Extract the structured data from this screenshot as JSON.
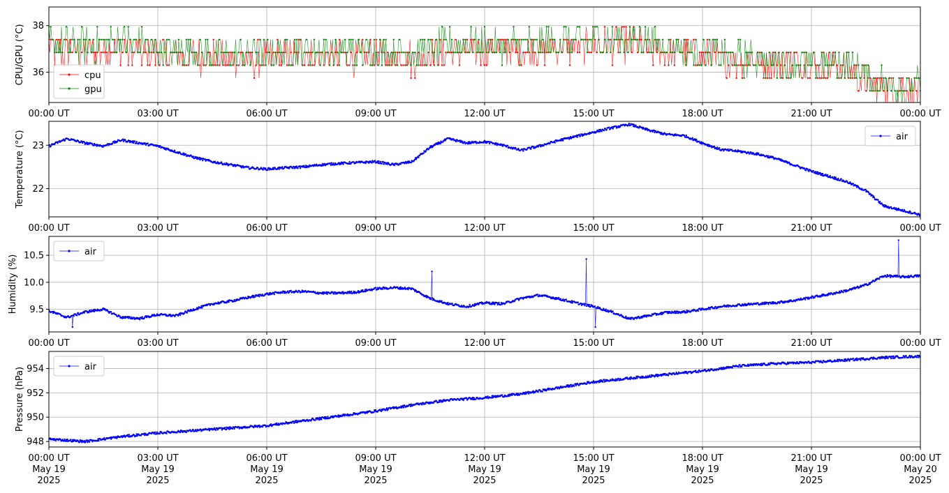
{
  "chart_data": [
    {
      "type": "line",
      "ylabel": "CPU/GPU (°C)",
      "ylim": [
        34.7,
        38.8
      ],
      "yticks": [
        36,
        38
      ],
      "legend_position": "lower left",
      "grid": true,
      "x_tick_labels": [
        "00:00 UT",
        "03:00 UT",
        "06:00 UT",
        "09:00 UT",
        "12:00 UT",
        "15:00 UT",
        "18:00 UT",
        "21:00 UT",
        "00:00 UT"
      ],
      "series": [
        {
          "name": "cpu",
          "color": "#ff0000",
          "x_hours": [
            0,
            1,
            2,
            3,
            4,
            5,
            6,
            7,
            8,
            9,
            10,
            11,
            12,
            13,
            14,
            15,
            16,
            17,
            18,
            19,
            20,
            21,
            22,
            22.5,
            23,
            24
          ],
          "values": [
            37.0,
            36.8,
            37.0,
            36.8,
            36.7,
            36.5,
            36.6,
            36.8,
            36.6,
            36.7,
            36.6,
            36.8,
            37.0,
            37.0,
            37.0,
            37.2,
            37.2,
            36.9,
            36.7,
            36.5,
            36.5,
            36.3,
            36.1,
            35.6,
            35.4,
            35.2
          ]
        },
        {
          "name": "gpu",
          "color": "#008000",
          "x_hours": [
            0,
            1,
            2,
            3,
            4,
            5,
            6,
            7,
            8,
            9,
            10,
            11,
            12,
            13,
            14,
            15,
            16,
            17,
            18,
            19,
            20,
            21,
            22,
            22.5,
            23,
            24
          ],
          "values": [
            37.3,
            37.1,
            37.3,
            37.0,
            36.9,
            36.7,
            36.8,
            37.0,
            36.9,
            36.9,
            36.9,
            37.1,
            37.2,
            37.2,
            37.3,
            37.4,
            37.4,
            37.2,
            36.9,
            36.6,
            36.5,
            36.4,
            36.3,
            35.9,
            35.5,
            35.4
          ]
        }
      ]
    },
    {
      "type": "line",
      "ylabel": "Temperature (°C)",
      "ylim": [
        21.35,
        23.55
      ],
      "yticks": [
        22,
        23
      ],
      "legend_position": "upper right",
      "grid": true,
      "x_tick_labels": [
        "00:00 UT",
        "03:00 UT",
        "06:00 UT",
        "09:00 UT",
        "12:00 UT",
        "15:00 UT",
        "18:00 UT",
        "21:00 UT",
        "00:00 UT"
      ],
      "series": [
        {
          "name": "air",
          "color": "#0000ff",
          "x_hours": [
            0,
            0.5,
            1,
            1.5,
            2,
            2.5,
            3,
            3.5,
            4,
            4.5,
            5,
            5.5,
            6,
            6.5,
            7,
            7.5,
            8,
            8.5,
            9,
            9.5,
            10,
            10.5,
            11,
            11.5,
            12,
            12.5,
            13,
            13.5,
            14,
            14.5,
            15,
            15.5,
            16,
            16.5,
            17,
            17.5,
            18,
            18.5,
            19,
            19.5,
            20,
            20.5,
            21,
            21.5,
            22,
            22.5,
            23,
            23.5,
            24
          ],
          "values": [
            22.98,
            23.15,
            23.05,
            22.98,
            23.12,
            23.05,
            22.98,
            22.85,
            22.72,
            22.62,
            22.55,
            22.48,
            22.45,
            22.48,
            22.5,
            22.55,
            22.58,
            22.6,
            22.62,
            22.55,
            22.62,
            22.95,
            23.15,
            23.05,
            23.08,
            23.0,
            22.88,
            22.98,
            23.1,
            23.2,
            23.3,
            23.4,
            23.48,
            23.35,
            23.25,
            23.22,
            23.05,
            22.9,
            22.86,
            22.8,
            22.7,
            22.55,
            22.4,
            22.28,
            22.15,
            21.95,
            21.6,
            21.5,
            21.4
          ]
        }
      ]
    },
    {
      "type": "line",
      "ylabel": "Humidity (%)",
      "ylim": [
        9.08,
        10.85
      ],
      "yticks": [
        9.5,
        10.0,
        10.5
      ],
      "legend_position": "upper left",
      "grid": true,
      "x_tick_labels": [
        "00:00 UT",
        "03:00 UT",
        "06:00 UT",
        "09:00 UT",
        "12:00 UT",
        "15:00 UT",
        "18:00 UT",
        "21:00 UT",
        "00:00 UT"
      ],
      "series": [
        {
          "name": "air",
          "color": "#0000ff",
          "x_hours": [
            0,
            0.5,
            1,
            1.5,
            2,
            2.5,
            3,
            3.5,
            4,
            4.5,
            5,
            5.5,
            6,
            6.5,
            7,
            7.5,
            8,
            8.5,
            9,
            9.5,
            10,
            10.5,
            11,
            11.5,
            12,
            12.5,
            13,
            13.5,
            14,
            14.5,
            15,
            15.5,
            16,
            16.5,
            17,
            17.5,
            18,
            18.5,
            19,
            19.5,
            20,
            20.5,
            21,
            21.5,
            22,
            22.5,
            23,
            23.5,
            24
          ],
          "values": [
            9.47,
            9.35,
            9.45,
            9.5,
            9.35,
            9.33,
            9.4,
            9.38,
            9.5,
            9.6,
            9.65,
            9.72,
            9.78,
            9.82,
            9.83,
            9.8,
            9.8,
            9.82,
            9.88,
            9.9,
            9.88,
            9.7,
            9.6,
            9.55,
            9.62,
            9.6,
            9.7,
            9.76,
            9.7,
            9.62,
            9.55,
            9.45,
            9.32,
            9.38,
            9.44,
            9.45,
            9.5,
            9.55,
            9.58,
            9.6,
            9.62,
            9.66,
            9.72,
            9.78,
            9.85,
            9.95,
            10.12,
            10.1,
            10.12
          ]
        }
      ],
      "spikes": [
        {
          "x_hour": 10.55,
          "value": 10.2
        },
        {
          "x_hour": 14.8,
          "value": 10.43
        },
        {
          "x_hour": 15.05,
          "value": 9.17
        },
        {
          "x_hour": 23.4,
          "value": 10.78
        },
        {
          "x_hour": 0.65,
          "value": 9.17
        }
      ]
    },
    {
      "type": "line",
      "ylabel": "Pressure (hPa)",
      "ylim": [
        947.55,
        955.4
      ],
      "yticks": [
        948,
        950,
        952,
        954
      ],
      "legend_position": "upper left",
      "grid": true,
      "x_tick_labels": [
        "00:00 UT\nMay 19\n2025",
        "03:00 UT\nMay 19\n2025",
        "06:00 UT\nMay 19\n2025",
        "09:00 UT\nMay 19\n2025",
        "12:00 UT\nMay 19\n2025",
        "15:00 UT\nMay 19\n2025",
        "18:00 UT\nMay 19\n2025",
        "21:00 UT\nMay 19\n2025",
        "00:00 UT\nMay 20\n2025"
      ],
      "series": [
        {
          "name": "air",
          "color": "#0000ff",
          "x_hours": [
            0,
            1,
            2,
            3,
            4,
            5,
            6,
            7,
            8,
            9,
            10,
            11,
            12,
            13,
            14,
            15,
            16,
            17,
            18,
            19,
            20,
            21,
            22,
            23,
            24
          ],
          "values": [
            948.2,
            948.0,
            948.4,
            948.7,
            948.9,
            949.1,
            949.3,
            949.7,
            950.1,
            950.5,
            951.0,
            951.4,
            951.6,
            951.9,
            952.4,
            952.9,
            953.2,
            953.5,
            953.8,
            954.2,
            954.4,
            954.5,
            954.7,
            954.9,
            955.0
          ]
        }
      ]
    }
  ]
}
